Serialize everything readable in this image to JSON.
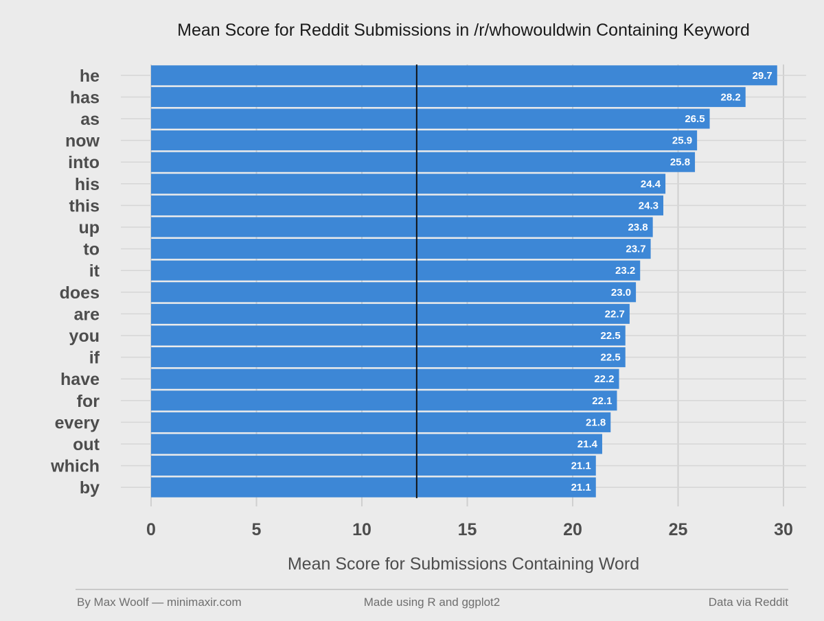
{
  "chart_data": {
    "type": "bar",
    "orientation": "horizontal",
    "title": "Mean Score for Reddit Submissions in /r/whowouldwin Containing Keyword",
    "xlabel": "Mean Score for Submissions Containing Word",
    "ylabel": "",
    "categories": [
      "he",
      "has",
      "as",
      "now",
      "into",
      "his",
      "this",
      "up",
      "to",
      "it",
      "does",
      "are",
      "you",
      "if",
      "have",
      "for",
      "every",
      "out",
      "which",
      "by"
    ],
    "values": [
      29.7,
      28.2,
      26.5,
      25.9,
      25.8,
      24.4,
      24.3,
      23.8,
      23.7,
      23.2,
      23.0,
      22.7,
      22.5,
      22.5,
      22.2,
      22.1,
      21.8,
      21.4,
      21.1,
      21.1
    ],
    "value_labels": [
      "29.7",
      "28.2",
      "26.5",
      "25.9",
      "25.8",
      "24.4",
      "24.3",
      "23.8",
      "23.7",
      "23.2",
      "23.0",
      "22.7",
      "22.5",
      "22.5",
      "22.2",
      "22.1",
      "21.8",
      "21.4",
      "21.1",
      "21.1"
    ],
    "xlim": [
      0,
      30
    ],
    "xticks": [
      0,
      5,
      10,
      15,
      20,
      25,
      30
    ],
    "xtick_labels": [
      "0",
      "5",
      "10",
      "15",
      "20",
      "25",
      "30"
    ],
    "reference_line": 12.6,
    "bar_color": "#3d87d6",
    "reference_line_color": "#111111",
    "grid": true,
    "legend": "none"
  },
  "footer": {
    "left": "By Max Woolf — minimaxir.com",
    "center": "Made using R and ggplot2",
    "right": "Data via Reddit"
  }
}
